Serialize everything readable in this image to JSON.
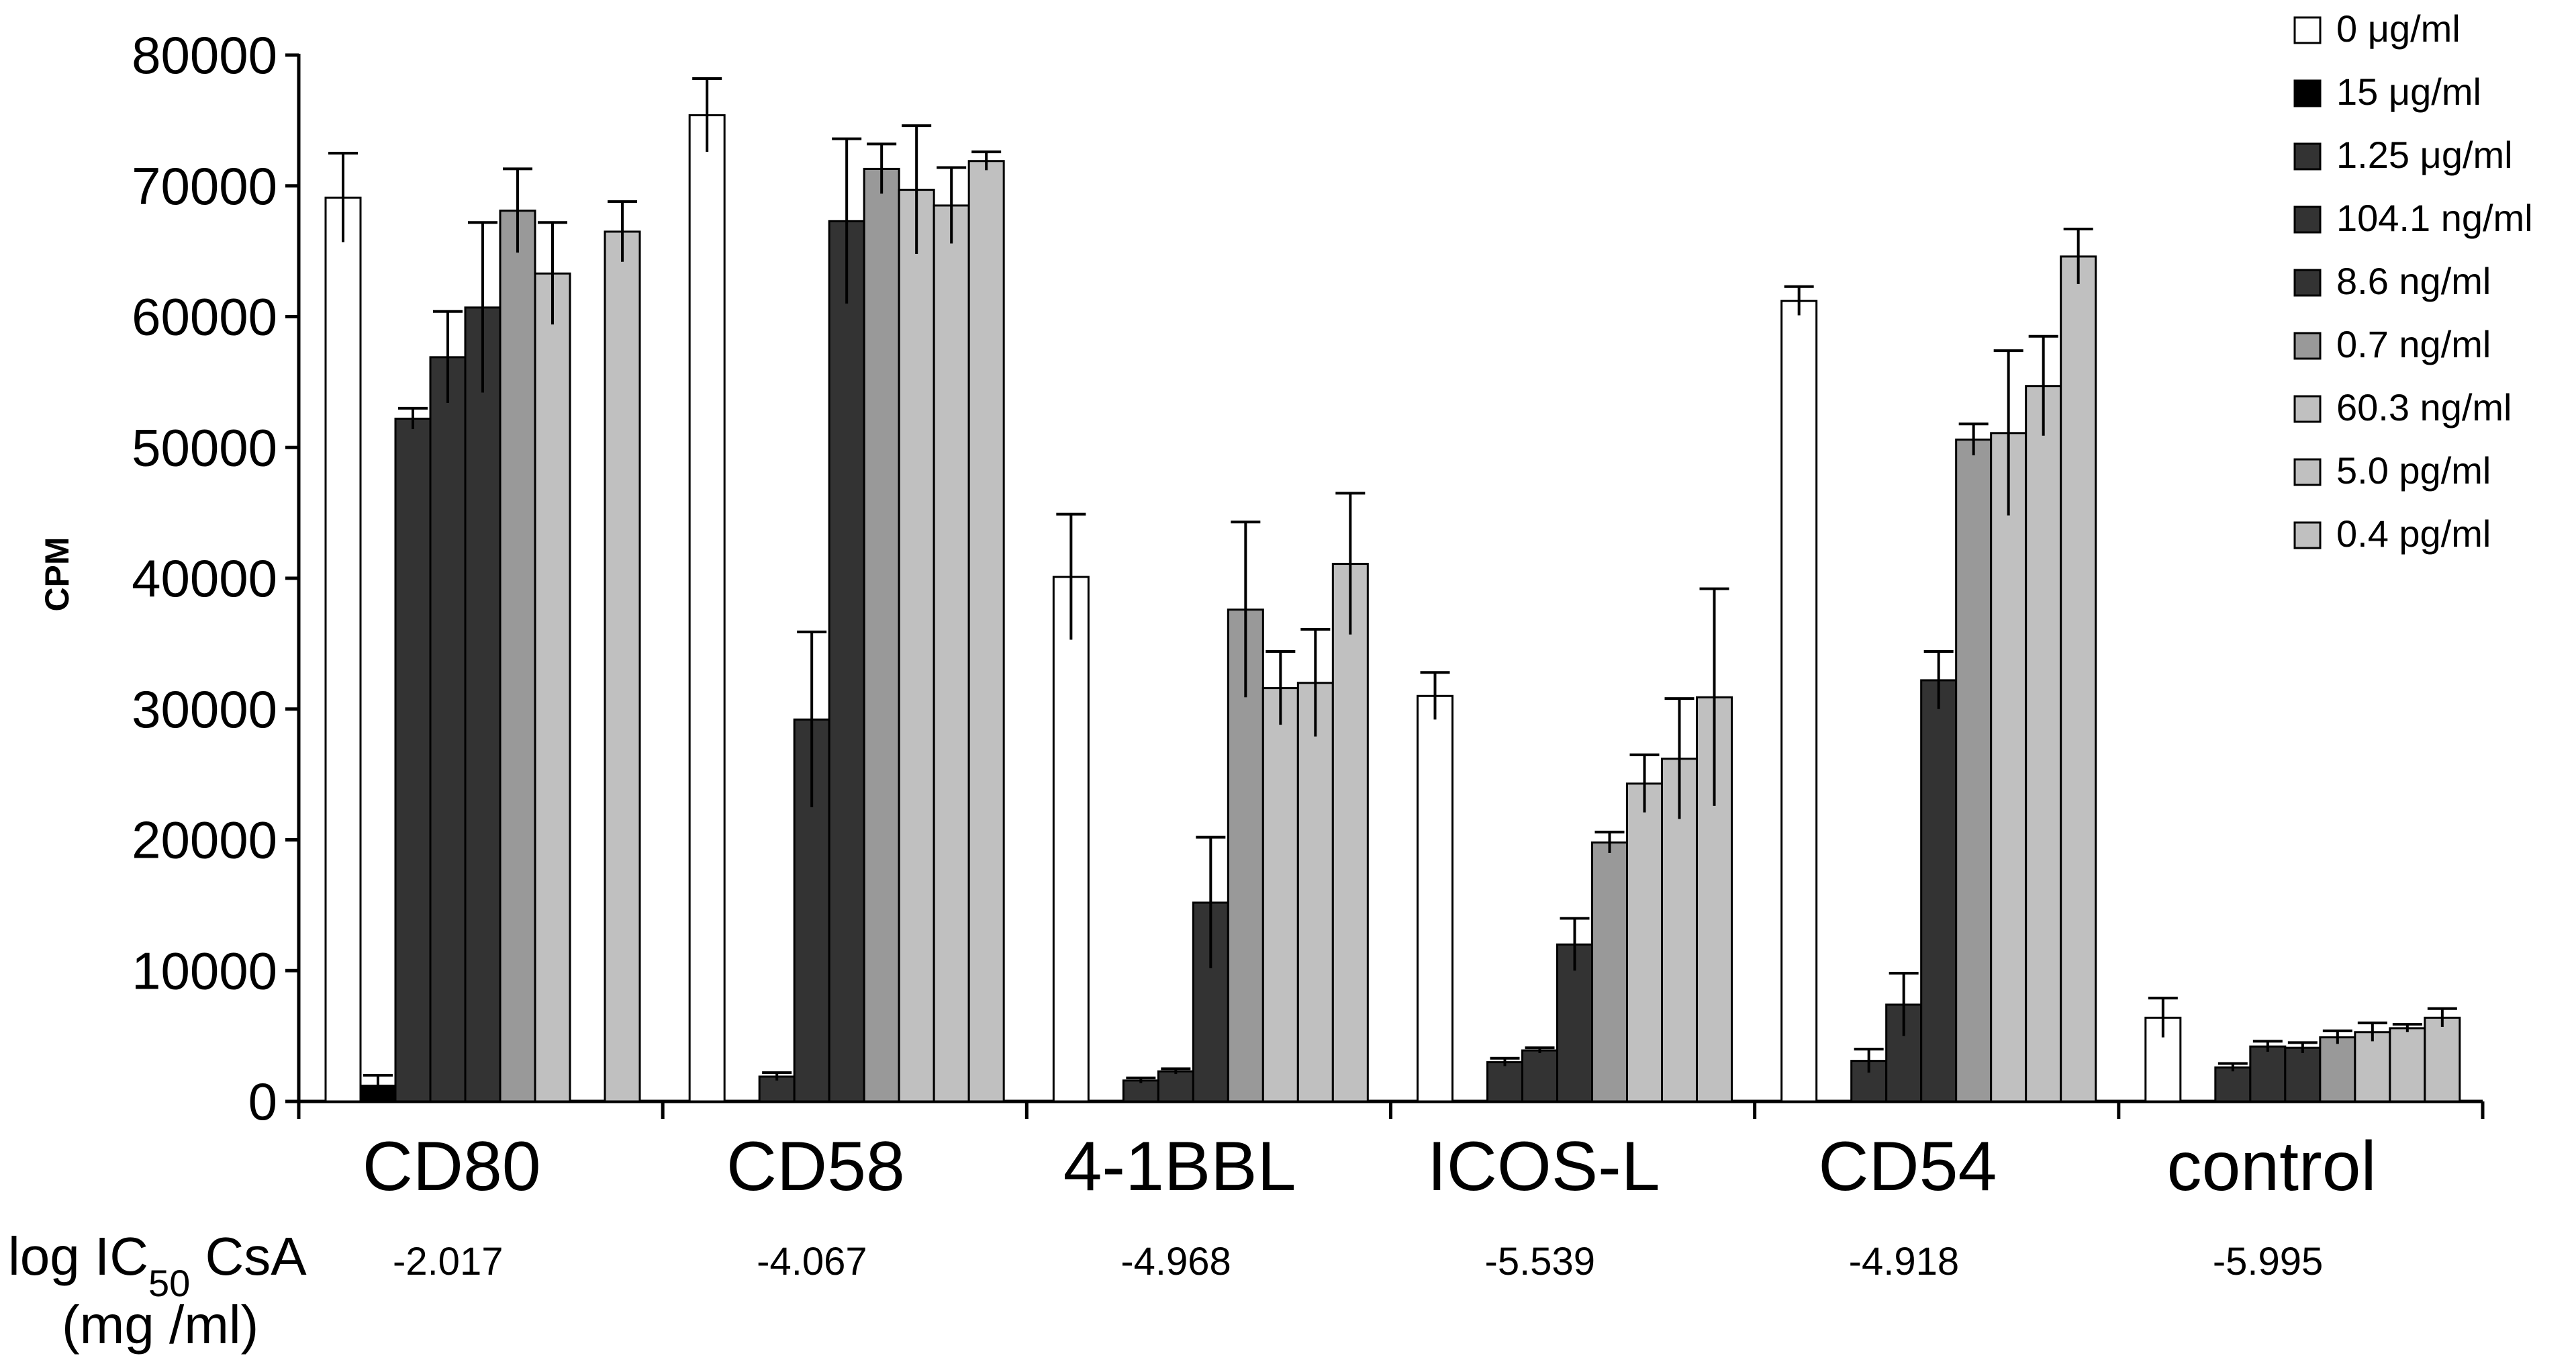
{
  "chart_data": {
    "type": "bar",
    "title": "",
    "xlabel": "",
    "ylabel": "CPM",
    "ylim": [
      0,
      80000
    ],
    "yticks": [
      "0",
      "10000",
      "20000",
      "30000",
      "40000",
      "50000",
      "60000",
      "70000",
      "80000"
    ],
    "legend_position": "top-right",
    "categories": [
      "CD80",
      "CD58",
      "4-1BBL",
      "ICOS-L",
      "CD54",
      "control"
    ],
    "series": [
      {
        "name": "0 μg/ml",
        "color": "#ffffff",
        "values": [
          69100,
          75400,
          40100,
          31000,
          61200,
          6400
        ],
        "errors": [
          3400,
          2800,
          4800,
          1800,
          1100,
          1500
        ]
      },
      {
        "name": "15 μg/ml",
        "color": "#000000",
        "values": [
          1200,
          null,
          null,
          null,
          null,
          null
        ],
        "errors": [
          800,
          null,
          null,
          null,
          null,
          null
        ]
      },
      {
        "name": "1.25 μg/ml",
        "color": "#333333",
        "values": [
          52200,
          1900,
          1600,
          3000,
          3100,
          2600
        ],
        "errors": [
          800,
          300,
          200,
          300,
          900,
          300
        ]
      },
      {
        "name": "104.1 ng/ml",
        "color": "#333333",
        "values": [
          56900,
          29200,
          2300,
          3900,
          7400,
          4200
        ],
        "errors": [
          3500,
          6700,
          200,
          200,
          2400,
          400
        ]
      },
      {
        "name": "8.6 ng/ml",
        "color": "#333333",
        "values": [
          60700,
          67300,
          15200,
          12000,
          32200,
          4100
        ],
        "errors": [
          6500,
          6300,
          5000,
          2000,
          2200,
          400
        ]
      },
      {
        "name": "0.7 ng/ml",
        "color": "#999999",
        "values": [
          68100,
          71300,
          37600,
          19800,
          50600,
          4900
        ],
        "errors": [
          3200,
          1900,
          6700,
          800,
          1200,
          500
        ]
      },
      {
        "name": "60.3 ng/ml",
        "color": "#c0c0c0",
        "values": [
          63300,
          69700,
          31600,
          24300,
          51100,
          5300
        ],
        "errors": [
          3900,
          4900,
          2800,
          2200,
          6300,
          700
        ]
      },
      {
        "name": "5.0 pg/ml",
        "color": "#c0c0c0",
        "values": [
          null,
          68500,
          32000,
          26200,
          54700,
          5600
        ],
        "errors": [
          null,
          2900,
          4100,
          4600,
          3800,
          300
        ]
      },
      {
        "name": "0.4 pg/ml",
        "color": "#c0c0c0",
        "values": [
          66500,
          71900,
          41100,
          30900,
          64600,
          6400
        ],
        "errors": [
          2300,
          700,
          5400,
          8300,
          2100,
          700
        ]
      }
    ],
    "ic50_label": [
      "log IC",
      "50",
      " CsA"
    ],
    "ic50_unit": "(mg /ml)",
    "ic50_values": [
      "-2.017",
      "-4.067",
      "-4.968",
      "-5.539",
      "-4.918",
      "-5.995"
    ]
  }
}
